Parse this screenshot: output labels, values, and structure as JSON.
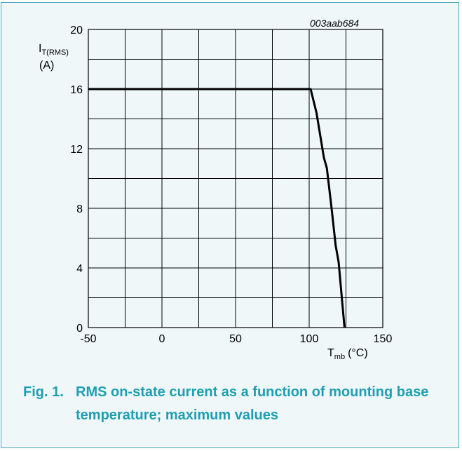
{
  "figure": {
    "code": "003aab684",
    "number": "Fig. 1.",
    "caption": "RMS on-state current as a function of mounting base temperature; maximum values"
  },
  "chart_data": {
    "type": "line",
    "ylabel": {
      "main": "I",
      "sub": "T(RMS)",
      "unit": "(A)"
    },
    "xlabel": {
      "main": "T",
      "sub": "mb",
      "unit": "(°C)"
    },
    "xlim": [
      -50,
      150
    ],
    "ylim": [
      0,
      20
    ],
    "x_ticks": [
      "-50",
      "0",
      "50",
      "100",
      "150"
    ],
    "y_ticks": [
      "0",
      "4",
      "8",
      "12",
      "16",
      "20"
    ],
    "grid": true,
    "series": [
      {
        "x": [
          -50,
          101,
          105,
          108,
          110,
          112,
          115,
          118,
          120,
          124
        ],
        "y": [
          16,
          16,
          14.4,
          12.6,
          11.4,
          10.7,
          8.2,
          5.5,
          4.4,
          0
        ]
      }
    ],
    "colors": {
      "panel": "#eff7f8",
      "border": "#49a6b5",
      "caption": "#1f9eb3",
      "grid": "#000000"
    }
  }
}
